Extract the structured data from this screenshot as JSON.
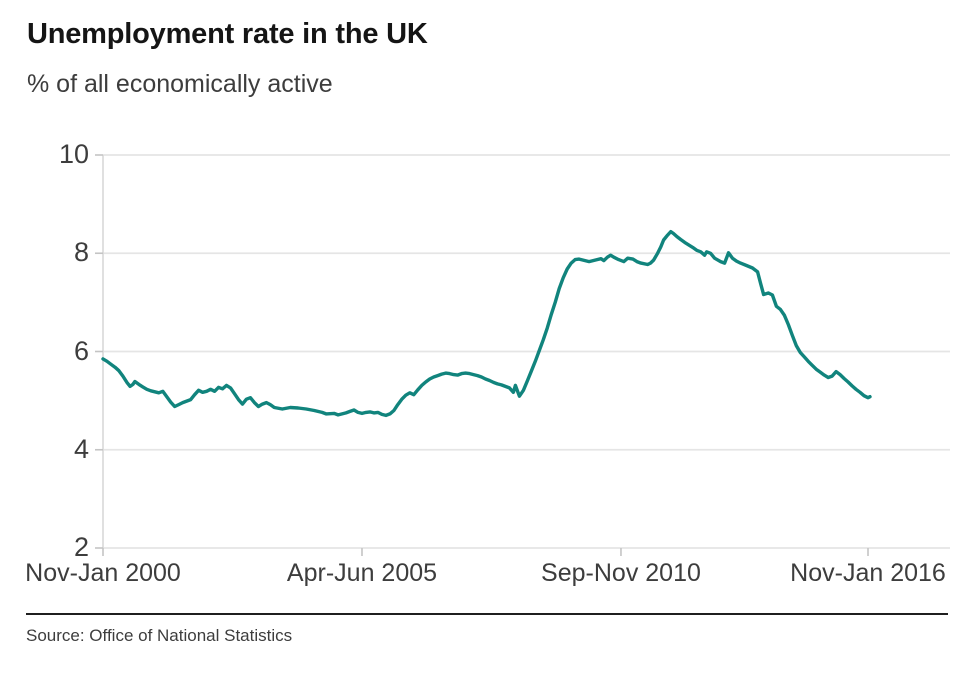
{
  "header": {
    "title": "Unemployment rate in the UK",
    "subtitle": "% of all economically active"
  },
  "source": {
    "text": "Source: Office of National Statistics"
  },
  "chart_data": {
    "type": "line",
    "title": "Unemployment rate in the UK",
    "ylabel": "% of all economically active",
    "xlabel": "",
    "ylim": [
      2,
      10
    ],
    "y_ticks": [
      10,
      8,
      6,
      4,
      2
    ],
    "x_ticks": [
      {
        "label": "Nov-Jan 2000",
        "month": 0
      },
      {
        "label": "Apr-Jun 2005",
        "month": 65
      },
      {
        "label": "Sep-Nov 2010",
        "month": 130
      },
      {
        "label": "Nov-Jan 2016",
        "month": 192
      }
    ],
    "x_total_months": 192,
    "grid": "horizontal",
    "legend": "none",
    "line_color": "#11847D",
    "series": [
      {
        "name": "UK unemployment rate, % of all economically active",
        "points": [
          [
            0,
            5.85
          ],
          [
            1,
            5.8
          ],
          [
            2,
            5.74
          ],
          [
            3,
            5.68
          ],
          [
            4,
            5.61
          ],
          [
            5,
            5.5
          ],
          [
            6,
            5.37
          ],
          [
            6.8,
            5.29
          ],
          [
            7.5,
            5.33
          ],
          [
            8,
            5.39
          ],
          [
            9,
            5.33
          ],
          [
            10,
            5.28
          ],
          [
            11,
            5.23
          ],
          [
            12,
            5.2
          ],
          [
            13,
            5.18
          ],
          [
            14,
            5.16
          ],
          [
            15,
            5.19
          ],
          [
            16,
            5.08
          ],
          [
            17,
            4.97
          ],
          [
            18,
            4.88
          ],
          [
            19,
            4.92
          ],
          [
            20,
            4.96
          ],
          [
            22,
            5.02
          ],
          [
            23,
            5.12
          ],
          [
            24,
            5.21
          ],
          [
            25,
            5.17
          ],
          [
            26,
            5.19
          ],
          [
            27,
            5.23
          ],
          [
            28,
            5.19
          ],
          [
            29,
            5.27
          ],
          [
            30,
            5.24
          ],
          [
            31,
            5.31
          ],
          [
            32,
            5.26
          ],
          [
            33,
            5.14
          ],
          [
            34,
            5.02
          ],
          [
            35,
            4.93
          ],
          [
            36,
            5.03
          ],
          [
            37,
            5.06
          ],
          [
            38,
            4.96
          ],
          [
            39,
            4.88
          ],
          [
            40,
            4.93
          ],
          [
            41,
            4.96
          ],
          [
            42,
            4.92
          ],
          [
            43,
            4.86
          ],
          [
            45,
            4.83
          ],
          [
            47,
            4.86
          ],
          [
            49,
            4.85
          ],
          [
            51,
            4.83
          ],
          [
            53,
            4.8
          ],
          [
            55,
            4.76
          ],
          [
            56,
            4.73
          ],
          [
            58,
            4.74
          ],
          [
            59,
            4.71
          ],
          [
            60,
            4.73
          ],
          [
            61,
            4.75
          ],
          [
            62,
            4.78
          ],
          [
            63,
            4.81
          ],
          [
            64,
            4.76
          ],
          [
            65,
            4.74
          ],
          [
            66,
            4.76
          ],
          [
            67,
            4.77
          ],
          [
            68,
            4.75
          ],
          [
            69,
            4.76
          ],
          [
            70,
            4.72
          ],
          [
            71,
            4.7
          ],
          [
            72,
            4.73
          ],
          [
            73,
            4.8
          ],
          [
            74,
            4.92
          ],
          [
            75,
            5.03
          ],
          [
            76,
            5.11
          ],
          [
            77,
            5.16
          ],
          [
            78,
            5.12
          ],
          [
            79,
            5.22
          ],
          [
            80,
            5.31
          ],
          [
            81,
            5.38
          ],
          [
            82,
            5.44
          ],
          [
            83,
            5.48
          ],
          [
            84,
            5.51
          ],
          [
            85,
            5.54
          ],
          [
            86,
            5.56
          ],
          [
            87,
            5.55
          ],
          [
            88,
            5.53
          ],
          [
            89,
            5.52
          ],
          [
            90,
            5.55
          ],
          [
            91,
            5.56
          ],
          [
            92,
            5.55
          ],
          [
            93,
            5.53
          ],
          [
            94,
            5.51
          ],
          [
            95,
            5.48
          ],
          [
            96,
            5.44
          ],
          [
            97,
            5.41
          ],
          [
            98,
            5.37
          ],
          [
            99,
            5.34
          ],
          [
            100,
            5.32
          ],
          [
            101,
            5.29
          ],
          [
            102,
            5.26
          ],
          [
            103,
            5.17
          ],
          [
            103.5,
            5.31
          ],
          [
            104.5,
            5.09
          ],
          [
            105.5,
            5.21
          ],
          [
            106.5,
            5.4
          ],
          [
            107.5,
            5.6
          ],
          [
            108.5,
            5.8
          ],
          [
            109.5,
            6.02
          ],
          [
            110.5,
            6.24
          ],
          [
            111.5,
            6.48
          ],
          [
            112.5,
            6.75
          ],
          [
            113.5,
            7.0
          ],
          [
            114.5,
            7.28
          ],
          [
            115.5,
            7.5
          ],
          [
            116.5,
            7.68
          ],
          [
            117.5,
            7.8
          ],
          [
            118.5,
            7.87
          ],
          [
            119.5,
            7.88
          ],
          [
            121,
            7.85
          ],
          [
            122,
            7.83
          ],
          [
            123,
            7.85
          ],
          [
            124,
            7.87
          ],
          [
            125,
            7.89
          ],
          [
            125.7,
            7.85
          ],
          [
            126.6,
            7.92
          ],
          [
            127.4,
            7.96
          ],
          [
            128.2,
            7.92
          ],
          [
            129.4,
            7.87
          ],
          [
            130.7,
            7.83
          ],
          [
            131.7,
            7.9
          ],
          [
            133,
            7.88
          ],
          [
            134,
            7.83
          ],
          [
            135,
            7.8
          ],
          [
            136.7,
            7.77
          ],
          [
            137.4,
            7.8
          ],
          [
            138.2,
            7.86
          ],
          [
            139.2,
            8.0
          ],
          [
            140,
            8.13
          ],
          [
            140.7,
            8.27
          ],
          [
            141.7,
            8.37
          ],
          [
            142.5,
            8.44
          ],
          [
            143.2,
            8.4
          ],
          [
            144,
            8.34
          ],
          [
            145,
            8.28
          ],
          [
            146,
            8.22
          ],
          [
            147,
            8.17
          ],
          [
            148,
            8.12
          ],
          [
            149,
            8.06
          ],
          [
            150,
            8.03
          ],
          [
            151,
            7.96
          ],
          [
            151.5,
            8.03
          ],
          [
            152.5,
            8.0
          ],
          [
            153.5,
            7.9
          ],
          [
            155,
            7.83
          ],
          [
            156,
            7.8
          ],
          [
            157,
            8.01
          ],
          [
            158,
            7.9
          ],
          [
            159,
            7.84
          ],
          [
            160,
            7.8
          ],
          [
            161.5,
            7.75
          ],
          [
            163,
            7.7
          ],
          [
            164.3,
            7.62
          ],
          [
            165.1,
            7.37
          ],
          [
            165.8,
            7.16
          ],
          [
            167,
            7.19
          ],
          [
            168,
            7.15
          ],
          [
            169,
            6.92
          ],
          [
            170,
            6.86
          ],
          [
            171,
            6.74
          ],
          [
            172,
            6.55
          ],
          [
            173,
            6.33
          ],
          [
            174,
            6.12
          ],
          [
            175,
            5.98
          ],
          [
            176,
            5.89
          ],
          [
            177,
            5.8
          ],
          [
            178,
            5.72
          ],
          [
            179,
            5.64
          ],
          [
            180,
            5.58
          ],
          [
            181,
            5.52
          ],
          [
            182,
            5.47
          ],
          [
            183,
            5.5
          ],
          [
            184,
            5.59
          ],
          [
            185,
            5.53
          ],
          [
            186,
            5.45
          ],
          [
            187,
            5.38
          ],
          [
            188,
            5.3
          ],
          [
            189,
            5.23
          ],
          [
            190,
            5.17
          ],
          [
            191,
            5.1
          ],
          [
            192,
            5.06
          ],
          [
            192.5,
            5.08
          ]
        ]
      }
    ],
    "source": "Source: Office of National Statistics"
  }
}
